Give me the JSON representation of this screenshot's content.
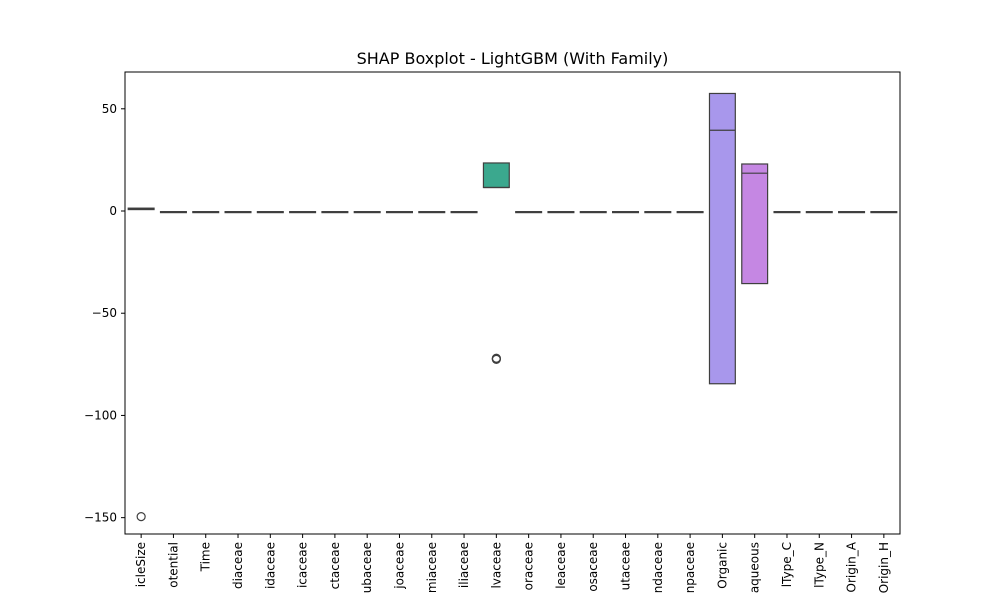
{
  "chart_data": {
    "type": "boxplot",
    "title": "SHAP Boxplot - LightGBM (With Family)",
    "xlabel": "",
    "ylabel": "",
    "ylim": [
      -158,
      68
    ],
    "yticks": [
      50,
      0,
      -50,
      -100,
      -150
    ],
    "ytick_labels": [
      "50",
      "0",
      "−50",
      "−100",
      "−150"
    ],
    "grid": false,
    "categories": [
      "icleSize",
      "otential",
      "Time",
      "diaceae",
      "idaceae",
      "icaceae",
      "ctaceae",
      "ubaceae",
      "joaceae",
      "miaceae",
      "iliaceae",
      "lvaceae",
      "oraceae",
      "leaceae",
      "osaceae",
      "utaceae",
      "ndaceae",
      "npaceae",
      "Organic",
      "aqueous",
      "lType_C",
      "lType_N",
      "Origin_A",
      "Origin_H"
    ],
    "boxes": [
      {
        "q1": 0.7,
        "median": 1.1,
        "q3": 1.4,
        "whisker_low": 0.7,
        "whisker_high": 1.4,
        "outliers": [
          -149.5
        ],
        "color": "#3274a1"
      },
      {
        "q1": -0.6,
        "median": -0.5,
        "q3": -0.3,
        "whisker_low": -0.6,
        "whisker_high": -0.3,
        "outliers": [],
        "color": "#e1812c"
      },
      {
        "q1": -0.6,
        "median": -0.5,
        "q3": -0.3,
        "whisker_low": -0.6,
        "whisker_high": -0.3,
        "outliers": [],
        "color": "#3a923a"
      },
      {
        "q1": -0.6,
        "median": -0.5,
        "q3": -0.3,
        "whisker_low": -0.6,
        "whisker_high": -0.3,
        "outliers": [],
        "color": "#c03d3e"
      },
      {
        "q1": -0.6,
        "median": -0.5,
        "q3": -0.3,
        "whisker_low": -0.6,
        "whisker_high": -0.3,
        "outliers": [],
        "color": "#9372b2"
      },
      {
        "q1": -0.6,
        "median": -0.5,
        "q3": -0.3,
        "whisker_low": -0.6,
        "whisker_high": -0.3,
        "outliers": [],
        "color": "#845b53"
      },
      {
        "q1": -0.6,
        "median": -0.5,
        "q3": -0.3,
        "whisker_low": -0.6,
        "whisker_high": -0.3,
        "outliers": [],
        "color": "#d684bd"
      },
      {
        "q1": -0.6,
        "median": -0.5,
        "q3": -0.3,
        "whisker_low": -0.6,
        "whisker_high": -0.3,
        "outliers": [],
        "color": "#7f7f7f"
      },
      {
        "q1": -0.6,
        "median": -0.5,
        "q3": -0.3,
        "whisker_low": -0.6,
        "whisker_high": -0.3,
        "outliers": [],
        "color": "#a9aa35"
      },
      {
        "q1": -0.6,
        "median": -0.5,
        "q3": -0.3,
        "whisker_low": -0.6,
        "whisker_high": -0.3,
        "outliers": [],
        "color": "#2ebece"
      },
      {
        "q1": -0.6,
        "median": -0.5,
        "q3": -0.3,
        "whisker_low": -0.6,
        "whisker_high": -0.3,
        "outliers": [],
        "color": "#3274a1"
      },
      {
        "q1": 11.5,
        "median": 11.5,
        "q3": 23.5,
        "whisker_low": 11.5,
        "whisker_high": 23.5,
        "outliers": [
          -72.0,
          -72.3,
          -72.6
        ],
        "color": "#3ba88e"
      },
      {
        "q1": -0.6,
        "median": -0.5,
        "q3": -0.3,
        "whisker_low": -0.6,
        "whisker_high": -0.3,
        "outliers": [],
        "color": "#3a923a"
      },
      {
        "q1": -0.6,
        "median": -0.5,
        "q3": -0.3,
        "whisker_low": -0.6,
        "whisker_high": -0.3,
        "outliers": [],
        "color": "#c03d3e"
      },
      {
        "q1": -0.6,
        "median": -0.5,
        "q3": -0.3,
        "whisker_low": -0.6,
        "whisker_high": -0.3,
        "outliers": [],
        "color": "#9372b2"
      },
      {
        "q1": -0.6,
        "median": -0.5,
        "q3": -0.3,
        "whisker_low": -0.6,
        "whisker_high": -0.3,
        "outliers": [],
        "color": "#845b53"
      },
      {
        "q1": -0.6,
        "median": -0.5,
        "q3": -0.3,
        "whisker_low": -0.6,
        "whisker_high": -0.3,
        "outliers": [],
        "color": "#d684bd"
      },
      {
        "q1": -0.6,
        "median": -0.5,
        "q3": -0.3,
        "whisker_low": -0.6,
        "whisker_high": -0.3,
        "outliers": [],
        "color": "#7f7f7f"
      },
      {
        "q1": -84.5,
        "median": 39.5,
        "q3": 57.5,
        "whisker_low": -84.5,
        "whisker_high": 57.5,
        "outliers": [],
        "color": "#a897ec"
      },
      {
        "q1": -35.5,
        "median": 18.5,
        "q3": 23.0,
        "whisker_low": -35.5,
        "whisker_high": 23.0,
        "outliers": [],
        "color": "#c587e3"
      },
      {
        "q1": -0.6,
        "median": -0.5,
        "q3": -0.3,
        "whisker_low": -0.6,
        "whisker_high": -0.3,
        "outliers": [],
        "color": "#2ebece"
      },
      {
        "q1": -0.6,
        "median": -0.5,
        "q3": -0.3,
        "whisker_low": -0.6,
        "whisker_high": -0.3,
        "outliers": [],
        "color": "#3274a1"
      },
      {
        "q1": -0.6,
        "median": -0.5,
        "q3": -0.3,
        "whisker_low": -0.6,
        "whisker_high": -0.3,
        "outliers": [],
        "color": "#e1812c"
      },
      {
        "q1": -0.6,
        "median": -0.5,
        "q3": -0.3,
        "whisker_low": -0.6,
        "whisker_high": -0.3,
        "outliers": [],
        "color": "#3a923a"
      }
    ]
  }
}
